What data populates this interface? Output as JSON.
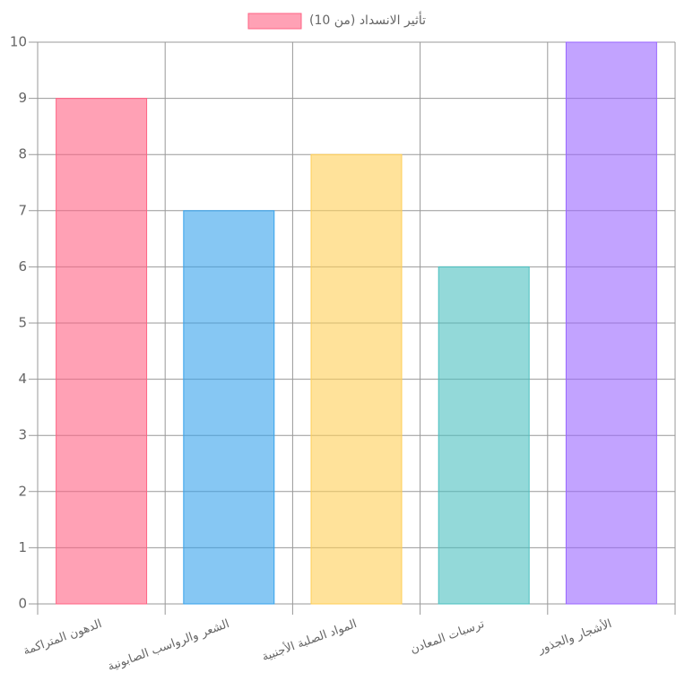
{
  "chart_data": {
    "type": "bar",
    "categories": [
      "الدهون المتراكمة",
      "الشعر والرواسب الصابونية",
      "المواد الصلبة الأجنبية",
      "ترسبات المعادن",
      "الأشجار والجذور"
    ],
    "series": [
      {
        "name": "تأثير الانسداد (من 10)",
        "values": [
          9,
          7,
          8,
          6,
          10
        ],
        "colors": [
          "rgba(255,99,132,0.6)",
          "rgba(54,162,235,0.6)",
          "rgba(255,206,86,0.6)",
          "rgba(75,192,192,0.6)",
          "rgba(153,102,255,0.6)"
        ],
        "border_colors": [
          "rgb(255,99,132)",
          "rgb(54,162,235)",
          "rgb(255,206,86)",
          "rgb(75,192,192)",
          "rgb(153,102,255)"
        ]
      }
    ],
    "ylim": [
      0,
      10
    ],
    "yticks": [
      0,
      1,
      2,
      3,
      4,
      5,
      6,
      7,
      8,
      9,
      10
    ],
    "grid": true,
    "legend": "top"
  }
}
